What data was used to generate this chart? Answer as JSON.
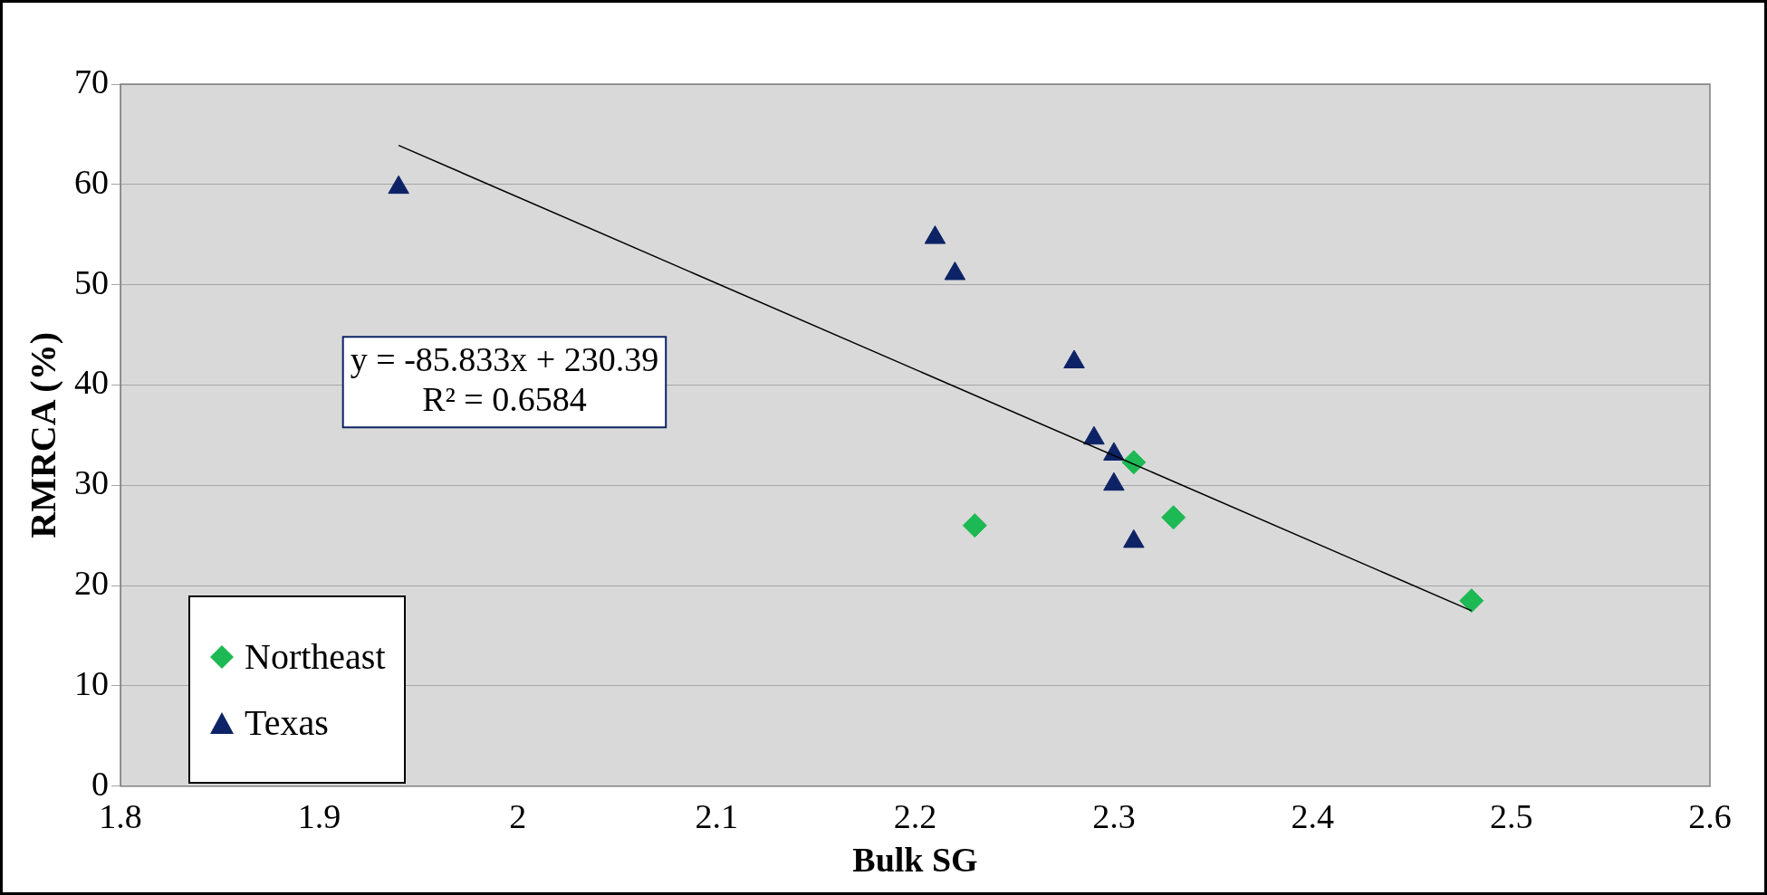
{
  "chart_data": {
    "type": "scatter",
    "xlabel": "Bulk SG",
    "ylabel": "RMRCA (%)",
    "xlim": [
      1.8,
      2.6
    ],
    "xticks": [
      1.8,
      1.9,
      2,
      2.1,
      2.2,
      2.3,
      2.4,
      2.5,
      2.6
    ],
    "ylim": [
      0,
      70
    ],
    "yticks": [
      0,
      10,
      20,
      30,
      40,
      50,
      60,
      70
    ],
    "grid": "y",
    "legend": "bottom left",
    "annotations": [
      "y = -85.833x + 230.39\nR² = 0.6584"
    ],
    "series": [
      {
        "name": "Northeast",
        "color": "#1db954",
        "marker": "diamond",
        "x": [
          2.23,
          2.31,
          2.33,
          2.48
        ],
        "values": [
          26.0,
          32.3,
          26.8,
          18.5
        ]
      },
      {
        "name": "Texas",
        "color": "#0d2366",
        "marker": "triangle",
        "x": [
          1.94,
          2.21,
          2.22,
          2.28,
          2.29,
          2.3,
          2.3,
          2.31
        ],
        "values": [
          59.7,
          54.7,
          51.1,
          42.3,
          34.7,
          33.1,
          30.1,
          24.4
        ]
      },
      {
        "type": "line",
        "color": "#000000",
        "marker": "none",
        "x": [
          1.94,
          2.48
        ],
        "values": [
          63.9,
          17.5
        ]
      }
    ]
  }
}
